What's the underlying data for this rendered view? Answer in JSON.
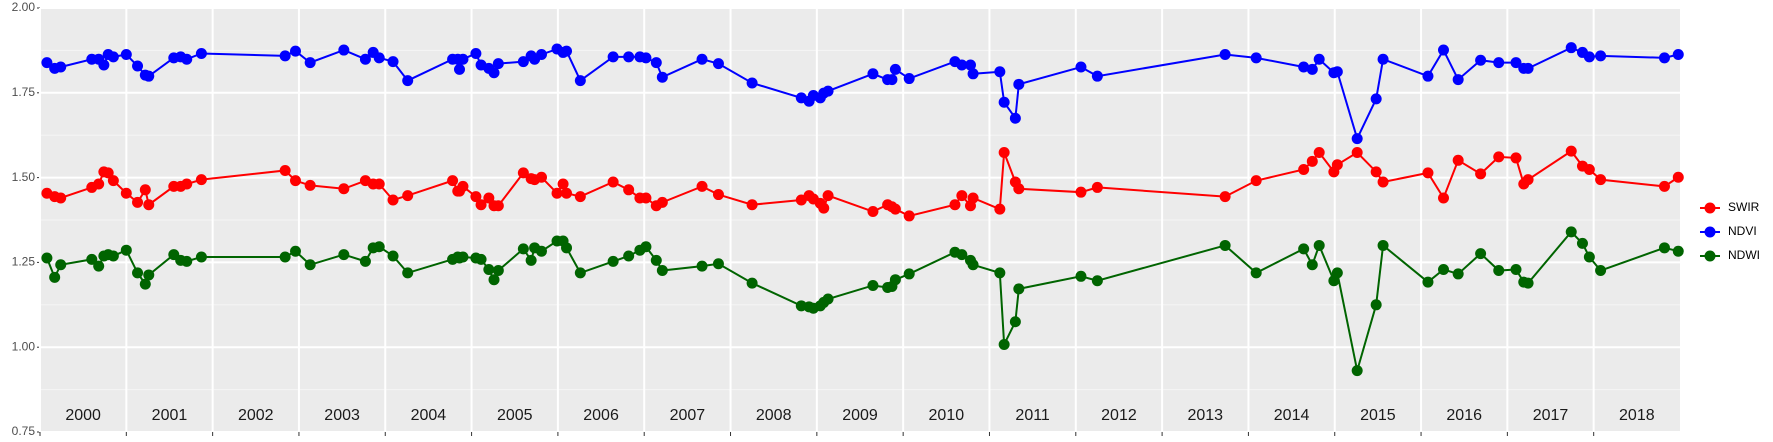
{
  "chart_data": {
    "type": "line",
    "x": [
      2000.08,
      2000.17,
      2000.24,
      2000.6,
      2000.68,
      2000.74,
      2000.79,
      2000.85,
      2001.0,
      2001.13,
      2001.22,
      2001.26,
      2001.55,
      2001.63,
      2001.7,
      2001.87,
      2002.84,
      2002.96,
      2003.13,
      2003.52,
      2003.77,
      2003.86,
      2003.93,
      2004.09,
      2004.26,
      2004.78,
      2004.84,
      2004.86,
      2004.9,
      2005.05,
      2005.11,
      2005.2,
      2005.26,
      2005.31,
      2005.6,
      2005.69,
      2005.73,
      2005.81,
      2005.99,
      2006.06,
      2006.1,
      2006.26,
      2006.64,
      2006.82,
      2006.95,
      2007.02,
      2007.14,
      2007.21,
      2007.67,
      2007.86,
      2008.25,
      2008.82,
      2008.91,
      2008.96,
      2009.04,
      2009.08,
      2009.13,
      2009.65,
      2009.82,
      2009.87,
      2009.91,
      2010.07,
      2010.6,
      2010.68,
      2010.78,
      2010.81,
      2011.12,
      2011.17,
      2011.3,
      2011.34,
      2012.06,
      2012.25,
      2013.73,
      2014.09,
      2014.64,
      2014.74,
      2014.82,
      2014.99,
      2015.03,
      2015.26,
      2015.48,
      2015.56,
      2016.08,
      2016.26,
      2016.43,
      2016.69,
      2016.9,
      2017.1,
      2017.19,
      2017.24,
      2017.74,
      2017.87,
      2017.95,
      2018.08,
      2018.82,
      2018.98
    ],
    "series": [
      {
        "name": "SWIR",
        "color": "#ff0000",
        "values": [
          1.454,
          1.444,
          1.44,
          1.471,
          1.481,
          1.517,
          1.514,
          1.491,
          1.454,
          1.427,
          1.464,
          1.42,
          1.474,
          1.474,
          1.481,
          1.494,
          1.521,
          1.491,
          1.477,
          1.467,
          1.491,
          1.481,
          1.481,
          1.434,
          1.447,
          1.491,
          1.46,
          1.46,
          1.474,
          1.444,
          1.42,
          1.44,
          1.417,
          1.417,
          1.514,
          1.497,
          1.494,
          1.501,
          1.454,
          1.481,
          1.454,
          1.444,
          1.487,
          1.464,
          1.44,
          1.44,
          1.417,
          1.427,
          1.474,
          1.45,
          1.42,
          1.434,
          1.447,
          1.437,
          1.424,
          1.41,
          1.447,
          1.4,
          1.42,
          1.414,
          1.407,
          1.387,
          1.42,
          1.447,
          1.417,
          1.44,
          1.407,
          1.574,
          1.487,
          1.467,
          1.457,
          1.471,
          1.444,
          1.491,
          1.524,
          1.548,
          1.574,
          1.517,
          1.538,
          1.574,
          1.517,
          1.487,
          1.514,
          1.44,
          1.551,
          1.511,
          1.561,
          1.558,
          1.481,
          1.494,
          1.578,
          1.534,
          1.524,
          1.494,
          1.474,
          1.501
        ]
      },
      {
        "name": "NDVI",
        "color": "#0000ff",
        "values": [
          1.839,
          1.822,
          1.826,
          1.849,
          1.849,
          1.832,
          1.863,
          1.856,
          1.863,
          1.829,
          1.802,
          1.799,
          1.853,
          1.856,
          1.849,
          1.866,
          1.859,
          1.873,
          1.839,
          1.876,
          1.849,
          1.869,
          1.853,
          1.842,
          1.786,
          1.849,
          1.849,
          1.819,
          1.849,
          1.866,
          1.832,
          1.822,
          1.809,
          1.836,
          1.842,
          1.859,
          1.849,
          1.863,
          1.879,
          1.869,
          1.873,
          1.786,
          1.856,
          1.856,
          1.856,
          1.853,
          1.839,
          1.796,
          1.849,
          1.836,
          1.779,
          1.735,
          1.725,
          1.742,
          1.735,
          1.749,
          1.755,
          1.806,
          1.789,
          1.789,
          1.819,
          1.792,
          1.842,
          1.832,
          1.832,
          1.806,
          1.812,
          1.722,
          1.675,
          1.775,
          1.826,
          1.799,
          1.863,
          1.853,
          1.826,
          1.819,
          1.849,
          1.809,
          1.812,
          1.615,
          1.732,
          1.849,
          1.799,
          1.876,
          1.789,
          1.846,
          1.839,
          1.839,
          1.822,
          1.822,
          1.883,
          1.869,
          1.856,
          1.859,
          1.853,
          1.863
        ]
      },
      {
        "name": "NDWI",
        "color": "#006400",
        "values": [
          1.263,
          1.206,
          1.243,
          1.259,
          1.239,
          1.269,
          1.273,
          1.269,
          1.286,
          1.219,
          1.186,
          1.213,
          1.273,
          1.256,
          1.253,
          1.266,
          1.266,
          1.283,
          1.243,
          1.273,
          1.253,
          1.293,
          1.296,
          1.269,
          1.219,
          1.259,
          1.266,
          1.263,
          1.266,
          1.263,
          1.259,
          1.229,
          1.199,
          1.226,
          1.29,
          1.256,
          1.293,
          1.283,
          1.313,
          1.313,
          1.293,
          1.219,
          1.253,
          1.269,
          1.286,
          1.296,
          1.256,
          1.226,
          1.239,
          1.246,
          1.189,
          1.122,
          1.119,
          1.115,
          1.122,
          1.132,
          1.142,
          1.182,
          1.176,
          1.179,
          1.199,
          1.216,
          1.28,
          1.273,
          1.256,
          1.243,
          1.219,
          1.008,
          1.075,
          1.172,
          1.209,
          1.196,
          1.3,
          1.219,
          1.29,
          1.243,
          1.3,
          1.196,
          1.219,
          0.931,
          1.125,
          1.3,
          1.192,
          1.229,
          1.216,
          1.276,
          1.226,
          1.229,
          1.192,
          1.189,
          1.34,
          1.306,
          1.266,
          1.226,
          1.293,
          1.283
        ]
      }
    ],
    "xlim": [
      2000,
      2019
    ],
    "xticks": [
      2000,
      2001,
      2002,
      2003,
      2004,
      2005,
      2006,
      2007,
      2008,
      2009,
      2010,
      2011,
      2012,
      2013,
      2014,
      2015,
      2016,
      2017,
      2018
    ],
    "ylim": [
      0.75,
      2.0
    ],
    "yticks": [
      0.75,
      {
        "value": 1,
        "label": "1.00"
      },
      1.25,
      {
        "value": 1.5,
        "label": "1.50"
      },
      1.75,
      {
        "value": 2,
        "label": "2.00"
      }
    ],
    "grid": true,
    "legend": "right"
  }
}
